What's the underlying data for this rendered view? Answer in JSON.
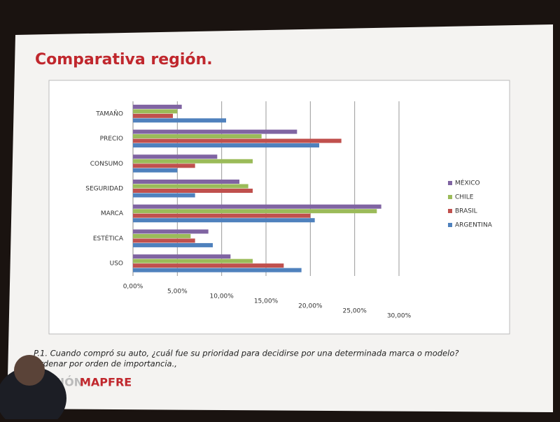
{
  "slide": {
    "title": "Comparativa región.",
    "footnote": [
      "P.1. Cuando compró su auto, ¿cuál fue su prioridad para decidirse por una determinada marca o modelo?",
      "Ordenar por orden de importancia.,"
    ],
    "logo": [
      "ACIÓN",
      "MAPFRE"
    ]
  },
  "chart_data": {
    "type": "hbar",
    "categories": [
      "TAMAÑO",
      "PRECIO",
      "CONSUMO",
      "SEGURIDAD",
      "MARCA",
      "ESTÉTICA",
      "USO"
    ],
    "series": [
      {
        "name": "MÉXICO",
        "color": "#8064a2",
        "values": [
          5.5,
          18.5,
          9.5,
          12,
          28,
          8.5,
          11
        ]
      },
      {
        "name": "CHILE",
        "color": "#9bbb59",
        "values": [
          5,
          14.5,
          13.5,
          13,
          27.5,
          6.5,
          13.5
        ]
      },
      {
        "name": "BRASIL",
        "color": "#c0504d",
        "values": [
          4.5,
          23.5,
          7,
          13.5,
          20,
          7,
          17
        ]
      },
      {
        "name": "ARGENTINA",
        "color": "#4f81bd",
        "values": [
          10.5,
          21,
          5,
          7,
          20.5,
          9,
          19
        ]
      }
    ],
    "xlim": [
      0,
      30
    ],
    "xticks": [
      {
        "value": 0,
        "label": "0,00%"
      },
      {
        "value": 5,
        "label": "5,00%"
      },
      {
        "value": 10,
        "label": "10,00%"
      },
      {
        "value": 15,
        "label": "15,00%"
      },
      {
        "value": 20,
        "label": "20,00%"
      },
      {
        "value": 25,
        "label": "25,00%"
      },
      {
        "value": 30,
        "label": "30,00%"
      }
    ],
    "grid": true,
    "legend": "right"
  }
}
